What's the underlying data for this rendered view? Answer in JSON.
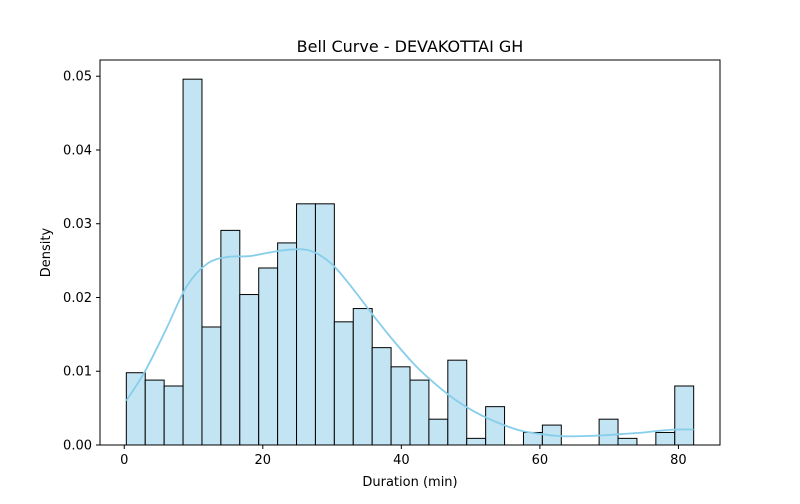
{
  "chart_data": {
    "type": "bar",
    "subtype": "histogram_with_kde",
    "title": "Bell Curve - DEVAKOTTAI GH",
    "xlabel": "Duration (min)",
    "ylabel": "Density",
    "xlim": [
      -3.5,
      86
    ],
    "ylim": [
      0,
      0.0522
    ],
    "xticks": [
      0,
      20,
      40,
      60,
      80
    ],
    "yticks": [
      0.0,
      0.01,
      0.02,
      0.03,
      0.04,
      0.05
    ],
    "ytick_labels": [
      "0.00",
      "0.01",
      "0.02",
      "0.03",
      "0.04",
      "0.05"
    ],
    "bin_edges": [
      0.3,
      3.03,
      5.76,
      8.49,
      11.22,
      13.95,
      16.68,
      19.41,
      22.14,
      24.87,
      27.6,
      30.33,
      33.06,
      35.79,
      38.52,
      41.25,
      43.98,
      46.71,
      49.44,
      52.17,
      54.9,
      57.63,
      60.36,
      63.09,
      65.82,
      68.55,
      71.28,
      74.01,
      76.74,
      79.47,
      82.2
    ],
    "values": [
      0.0098,
      0.0088,
      0.008,
      0.0496,
      0.016,
      0.0291,
      0.0204,
      0.024,
      0.0274,
      0.0327,
      0.0327,
      0.0167,
      0.0185,
      0.0132,
      0.0106,
      0.0088,
      0.0035,
      0.0115,
      0.0009,
      0.0052,
      0.0,
      0.0017,
      0.0027,
      0.0,
      0.0,
      0.0035,
      0.0009,
      0.0,
      0.0017,
      0.008
    ],
    "kde": {
      "x": [
        0.3,
        3,
        6,
        9,
        12,
        15,
        18,
        21,
        24,
        27,
        30,
        33,
        36,
        39,
        42,
        45,
        48,
        51,
        54,
        57,
        60,
        63,
        66,
        69,
        72,
        75,
        78,
        80,
        82.2
      ],
      "y": [
        0.006,
        0.01,
        0.0156,
        0.0215,
        0.0246,
        0.0255,
        0.0256,
        0.0261,
        0.0265,
        0.0263,
        0.0245,
        0.0212,
        0.0175,
        0.014,
        0.0108,
        0.0082,
        0.006,
        0.0043,
        0.003,
        0.002,
        0.0015,
        0.0012,
        0.0012,
        0.0013,
        0.0015,
        0.0017,
        0.002,
        0.0021,
        0.0021
      ]
    },
    "bar_fill": "#c3e4f2",
    "bar_edge": "#000000",
    "kde_color": "#87ceeb",
    "grid": false,
    "legend": "none"
  }
}
